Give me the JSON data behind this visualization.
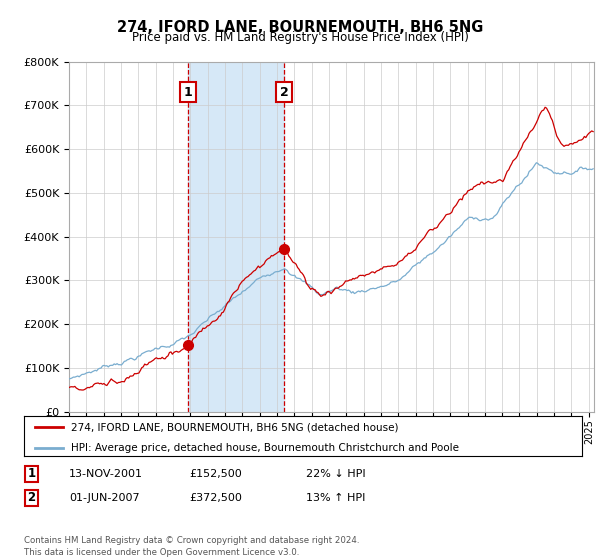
{
  "title": "274, IFORD LANE, BOURNEMOUTH, BH6 5NG",
  "subtitle": "Price paid vs. HM Land Registry's House Price Index (HPI)",
  "ylim": [
    0,
    800000
  ],
  "yticks": [
    0,
    100000,
    200000,
    300000,
    400000,
    500000,
    600000,
    700000,
    800000
  ],
  "ytick_labels": [
    "£0",
    "£100K",
    "£200K",
    "£300K",
    "£400K",
    "£500K",
    "£600K",
    "£700K",
    "£800K"
  ],
  "purchase1": {
    "date_num": 2001.87,
    "price": 152500,
    "label": "1",
    "date_str": "13-NOV-2001",
    "price_str": "£152,500",
    "hpi_diff": "22% ↓ HPI"
  },
  "purchase2": {
    "date_num": 2007.42,
    "price": 372500,
    "label": "2",
    "date_str": "01-JUN-2007",
    "price_str": "£372,500",
    "hpi_diff": "13% ↑ HPI"
  },
  "shade_start": 2001.87,
  "shade_end": 2007.42,
  "shade_color": "#d6e8f7",
  "vline_color": "#cc0000",
  "hpi_line_color": "#7aadcf",
  "price_line_color": "#cc0000",
  "legend_label_red": "274, IFORD LANE, BOURNEMOUTH, BH6 5NG (detached house)",
  "legend_label_blue": "HPI: Average price, detached house, Bournemouth Christchurch and Poole",
  "footer": "Contains HM Land Registry data © Crown copyright and database right 2024.\nThis data is licensed under the Open Government Licence v3.0.",
  "table_row1": [
    "1",
    "13-NOV-2001",
    "£152,500",
    "22% ↓ HPI"
  ],
  "table_row2": [
    "2",
    "01-JUN-2007",
    "£372,500",
    "13% ↑ HPI"
  ],
  "xlim_start": 1995,
  "xlim_end": 2025.3
}
